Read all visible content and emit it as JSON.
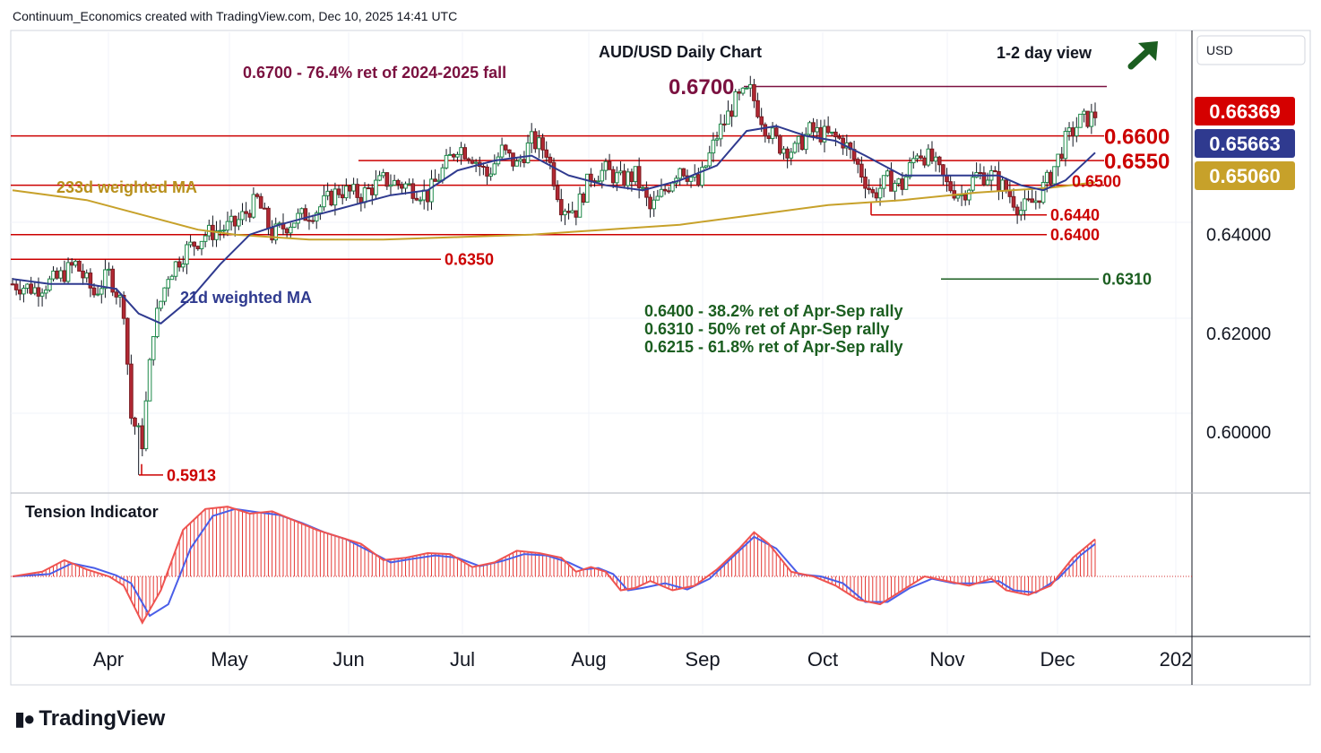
{
  "header": {
    "attribution": "Continuum_Economics created with TradingView.com, Dec 10, 2025 14:41 UTC"
  },
  "branding": {
    "logo_icon": "tradingview-logo-icon",
    "name": "TradingView"
  },
  "chart_data": {
    "type": "candlestick",
    "title": "AUD/USD Daily Chart",
    "view_label": "1-2 day view",
    "view_icon": "arrow-up-right-icon",
    "currency_label": "USD",
    "y_range": [
      0.588,
      0.681
    ],
    "y_ticks": [
      "0.64000",
      "0.62000",
      "0.60000"
    ],
    "x_ticks": [
      "Apr",
      "May",
      "Jun",
      "Jul",
      "Aug",
      "Sep",
      "Oct",
      "Nov",
      "Dec",
      "202"
    ],
    "price_badges": [
      {
        "text": "0.66369",
        "value": 0.66369,
        "color": "#d50000"
      },
      {
        "text": "0.65663",
        "value": 0.65663,
        "color": "#2f3a8f"
      },
      {
        "text": "0.65060",
        "value": 0.6506,
        "color": "#c7a12a"
      }
    ],
    "levels": [
      {
        "text": "0.6700",
        "value": 0.67,
        "color": "#7b1140"
      },
      {
        "text": "0.6600",
        "value": 0.66,
        "color": "#cc0000"
      },
      {
        "text": "0.6550",
        "value": 0.655,
        "color": "#cc0000"
      },
      {
        "text": "0.6500",
        "value": 0.65,
        "color": "#cc0000"
      },
      {
        "text": "0.6440",
        "value": 0.644,
        "color": "#cc0000"
      },
      {
        "text": "0.6400",
        "value": 0.64,
        "color": "#cc0000"
      },
      {
        "text": "0.6350",
        "value": 0.635,
        "color": "#cc0000"
      },
      {
        "text": "0.6310",
        "value": 0.631,
        "color": "#1b5e20"
      },
      {
        "text": "0.5913",
        "value": 0.5913,
        "color": "#cc0000"
      }
    ],
    "annotations": {
      "fib_note": "0.6700 - 76.4% ret of 2024-2025 fall",
      "ma233_label": "233d weighted MA",
      "ma21_label": "21d weighted MA",
      "ret_notes": [
        "0.6400 - 38.2% ret of Apr-Sep rally",
        "0.6310 - 50% ret of Apr-Sep rally",
        "0.6215 - 61.8% ret of Apr-Sep rally"
      ]
    },
    "close_path": [
      [
        0,
        0.63
      ],
      [
        6,
        0.629
      ],
      [
        12,
        0.631
      ],
      [
        17,
        0.634
      ],
      [
        22,
        0.628
      ],
      [
        26,
        0.632
      ],
      [
        30,
        0.625
      ],
      [
        32,
        0.603
      ],
      [
        35,
        0.598
      ],
      [
        38,
        0.621
      ],
      [
        42,
        0.632
      ],
      [
        47,
        0.637
      ],
      [
        52,
        0.64
      ],
      [
        60,
        0.642
      ],
      [
        66,
        0.647
      ],
      [
        70,
        0.64
      ],
      [
        76,
        0.643
      ],
      [
        82,
        0.645
      ],
      [
        88,
        0.649
      ],
      [
        94,
        0.648
      ],
      [
        100,
        0.651
      ],
      [
        106,
        0.65
      ],
      [
        112,
        0.648
      ],
      [
        116,
        0.653
      ],
      [
        120,
        0.658
      ],
      [
        124,
        0.656
      ],
      [
        128,
        0.652
      ],
      [
        132,
        0.657
      ],
      [
        136,
        0.654
      ],
      [
        140,
        0.659
      ],
      [
        144,
        0.657
      ],
      [
        148,
        0.646
      ],
      [
        152,
        0.645
      ],
      [
        156,
        0.652
      ],
      [
        160,
        0.653
      ],
      [
        164,
        0.651
      ],
      [
        168,
        0.652
      ],
      [
        172,
        0.645
      ],
      [
        176,
        0.649
      ],
      [
        180,
        0.654
      ],
      [
        185,
        0.65
      ],
      [
        190,
        0.66
      ],
      [
        195,
        0.667
      ],
      [
        199,
        0.669
      ],
      [
        203,
        0.662
      ],
      [
        207,
        0.658
      ],
      [
        211,
        0.657
      ],
      [
        215,
        0.661
      ],
      [
        220,
        0.66
      ],
      [
        224,
        0.659
      ],
      [
        228,
        0.654
      ],
      [
        232,
        0.648
      ],
      [
        236,
        0.651
      ],
      [
        240,
        0.65
      ],
      [
        244,
        0.657
      ],
      [
        248,
        0.655
      ],
      [
        252,
        0.65
      ],
      [
        256,
        0.648
      ],
      [
        260,
        0.652
      ],
      [
        264,
        0.652
      ],
      [
        268,
        0.649
      ],
      [
        272,
        0.645
      ],
      [
        276,
        0.647
      ],
      [
        280,
        0.652
      ],
      [
        284,
        0.659
      ],
      [
        288,
        0.663
      ],
      [
        292,
        0.664
      ]
    ],
    "ma21_path": [
      [
        0,
        0.631
      ],
      [
        10,
        0.63
      ],
      [
        20,
        0.63
      ],
      [
        28,
        0.629
      ],
      [
        34,
        0.624
      ],
      [
        40,
        0.622
      ],
      [
        48,
        0.627
      ],
      [
        56,
        0.634
      ],
      [
        64,
        0.64
      ],
      [
        72,
        0.642
      ],
      [
        82,
        0.644
      ],
      [
        92,
        0.646
      ],
      [
        102,
        0.648
      ],
      [
        112,
        0.649
      ],
      [
        120,
        0.653
      ],
      [
        130,
        0.655
      ],
      [
        140,
        0.656
      ],
      [
        150,
        0.652
      ],
      [
        160,
        0.65
      ],
      [
        170,
        0.649
      ],
      [
        180,
        0.651
      ],
      [
        190,
        0.654
      ],
      [
        198,
        0.661
      ],
      [
        206,
        0.662
      ],
      [
        214,
        0.66
      ],
      [
        222,
        0.659
      ],
      [
        230,
        0.656
      ],
      [
        240,
        0.652
      ],
      [
        250,
        0.652
      ],
      [
        258,
        0.652
      ],
      [
        266,
        0.652
      ],
      [
        272,
        0.65
      ],
      [
        278,
        0.649
      ],
      [
        284,
        0.651
      ],
      [
        292,
        0.6566
      ]
    ],
    "ma233_path": [
      [
        0,
        0.649
      ],
      [
        20,
        0.647
      ],
      [
        40,
        0.643
      ],
      [
        50,
        0.641
      ],
      [
        60,
        0.64
      ],
      [
        80,
        0.639
      ],
      [
        100,
        0.639
      ],
      [
        120,
        0.6395
      ],
      [
        140,
        0.64
      ],
      [
        160,
        0.641
      ],
      [
        180,
        0.642
      ],
      [
        200,
        0.644
      ],
      [
        220,
        0.646
      ],
      [
        240,
        0.647
      ],
      [
        260,
        0.6485
      ],
      [
        280,
        0.6495
      ],
      [
        292,
        0.6506
      ]
    ],
    "tension_indicator": {
      "title": "Tension Indicator",
      "range": [
        -1.1,
        1.6
      ],
      "values_path": [
        [
          0,
          0.0
        ],
        [
          8,
          0.1
        ],
        [
          14,
          0.35
        ],
        [
          20,
          0.15
        ],
        [
          26,
          0.0
        ],
        [
          30,
          -0.2
        ],
        [
          35,
          -1.0
        ],
        [
          40,
          -0.3
        ],
        [
          46,
          1.0
        ],
        [
          52,
          1.45
        ],
        [
          58,
          1.5
        ],
        [
          64,
          1.35
        ],
        [
          70,
          1.4
        ],
        [
          76,
          1.2
        ],
        [
          82,
          1.0
        ],
        [
          88,
          0.85
        ],
        [
          94,
          0.7
        ],
        [
          100,
          0.35
        ],
        [
          106,
          0.4
        ],
        [
          112,
          0.5
        ],
        [
          118,
          0.48
        ],
        [
          124,
          0.2
        ],
        [
          130,
          0.3
        ],
        [
          136,
          0.55
        ],
        [
          142,
          0.5
        ],
        [
          148,
          0.4
        ],
        [
          152,
          0.1
        ],
        [
          156,
          0.2
        ],
        [
          160,
          0.1
        ],
        [
          164,
          -0.3
        ],
        [
          168,
          -0.25
        ],
        [
          172,
          -0.1
        ],
        [
          178,
          -0.3
        ],
        [
          184,
          -0.2
        ],
        [
          190,
          0.15
        ],
        [
          196,
          0.6
        ],
        [
          200,
          0.95
        ],
        [
          204,
          0.7
        ],
        [
          210,
          0.1
        ],
        [
          216,
          0.0
        ],
        [
          222,
          -0.2
        ],
        [
          228,
          -0.5
        ],
        [
          234,
          -0.6
        ],
        [
          240,
          -0.3
        ],
        [
          246,
          0.0
        ],
        [
          252,
          -0.1
        ],
        [
          258,
          -0.2
        ],
        [
          264,
          -0.05
        ],
        [
          268,
          -0.3
        ],
        [
          274,
          -0.4
        ],
        [
          280,
          -0.2
        ],
        [
          286,
          0.4
        ],
        [
          292,
          0.8
        ]
      ],
      "signal_path": [
        [
          0,
          0.0
        ],
        [
          10,
          0.05
        ],
        [
          16,
          0.28
        ],
        [
          22,
          0.18
        ],
        [
          28,
          0.02
        ],
        [
          32,
          -0.15
        ],
        [
          37,
          -0.85
        ],
        [
          42,
          -0.6
        ],
        [
          48,
          0.6
        ],
        [
          54,
          1.3
        ],
        [
          60,
          1.45
        ],
        [
          66,
          1.38
        ],
        [
          72,
          1.32
        ],
        [
          78,
          1.15
        ],
        [
          84,
          0.95
        ],
        [
          90,
          0.8
        ],
        [
          96,
          0.55
        ],
        [
          102,
          0.3
        ],
        [
          108,
          0.38
        ],
        [
          114,
          0.45
        ],
        [
          120,
          0.4
        ],
        [
          126,
          0.22
        ],
        [
          132,
          0.33
        ],
        [
          138,
          0.48
        ],
        [
          144,
          0.45
        ],
        [
          150,
          0.3
        ],
        [
          154,
          0.15
        ],
        [
          158,
          0.18
        ],
        [
          162,
          0.05
        ],
        [
          166,
          -0.3
        ],
        [
          170,
          -0.25
        ],
        [
          176,
          -0.15
        ],
        [
          182,
          -0.28
        ],
        [
          188,
          -0.05
        ],
        [
          194,
          0.4
        ],
        [
          200,
          0.85
        ],
        [
          206,
          0.6
        ],
        [
          212,
          0.05
        ],
        [
          218,
          0.0
        ],
        [
          224,
          -0.15
        ],
        [
          230,
          -0.55
        ],
        [
          236,
          -0.55
        ],
        [
          242,
          -0.25
        ],
        [
          248,
          -0.05
        ],
        [
          254,
          -0.15
        ],
        [
          260,
          -0.15
        ],
        [
          266,
          -0.1
        ],
        [
          270,
          -0.3
        ],
        [
          276,
          -0.35
        ],
        [
          282,
          -0.05
        ],
        [
          288,
          0.45
        ],
        [
          292,
          0.7
        ]
      ]
    }
  }
}
